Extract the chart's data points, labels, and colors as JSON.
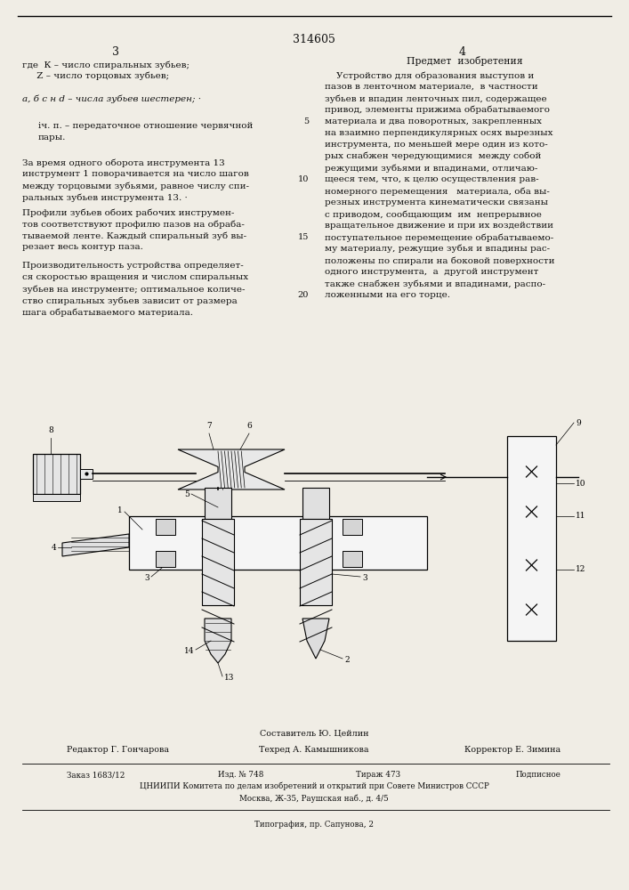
{
  "page_color": "#f0ede5",
  "text_color": "#111111",
  "patent_number": "314605",
  "page_num_left": "3",
  "page_num_right": "4",
  "section_title": "Предмет  изобретения",
  "footer_compiler": "Составитель Ю. Цейлин",
  "footer_editor": "Редактор Г. Гончарова",
  "footer_tech": "Техред А. Камышникова",
  "footer_corrector": "Корректор Е. Зимина",
  "footer_order": "Заказ 1683/12",
  "footer_izd": "Изд. № 748",
  "footer_tirazh": "Тираж 473",
  "footer_podp": "Подписное",
  "footer_org": "ЦНИИПИ Комитета по делам изобретений и открытий при Совете Министров СССР",
  "footer_addr": "Москва, Ж-35, Раушская наб., д. 4/5",
  "footer_typo": "Типография, пр. Сапунова, 2"
}
